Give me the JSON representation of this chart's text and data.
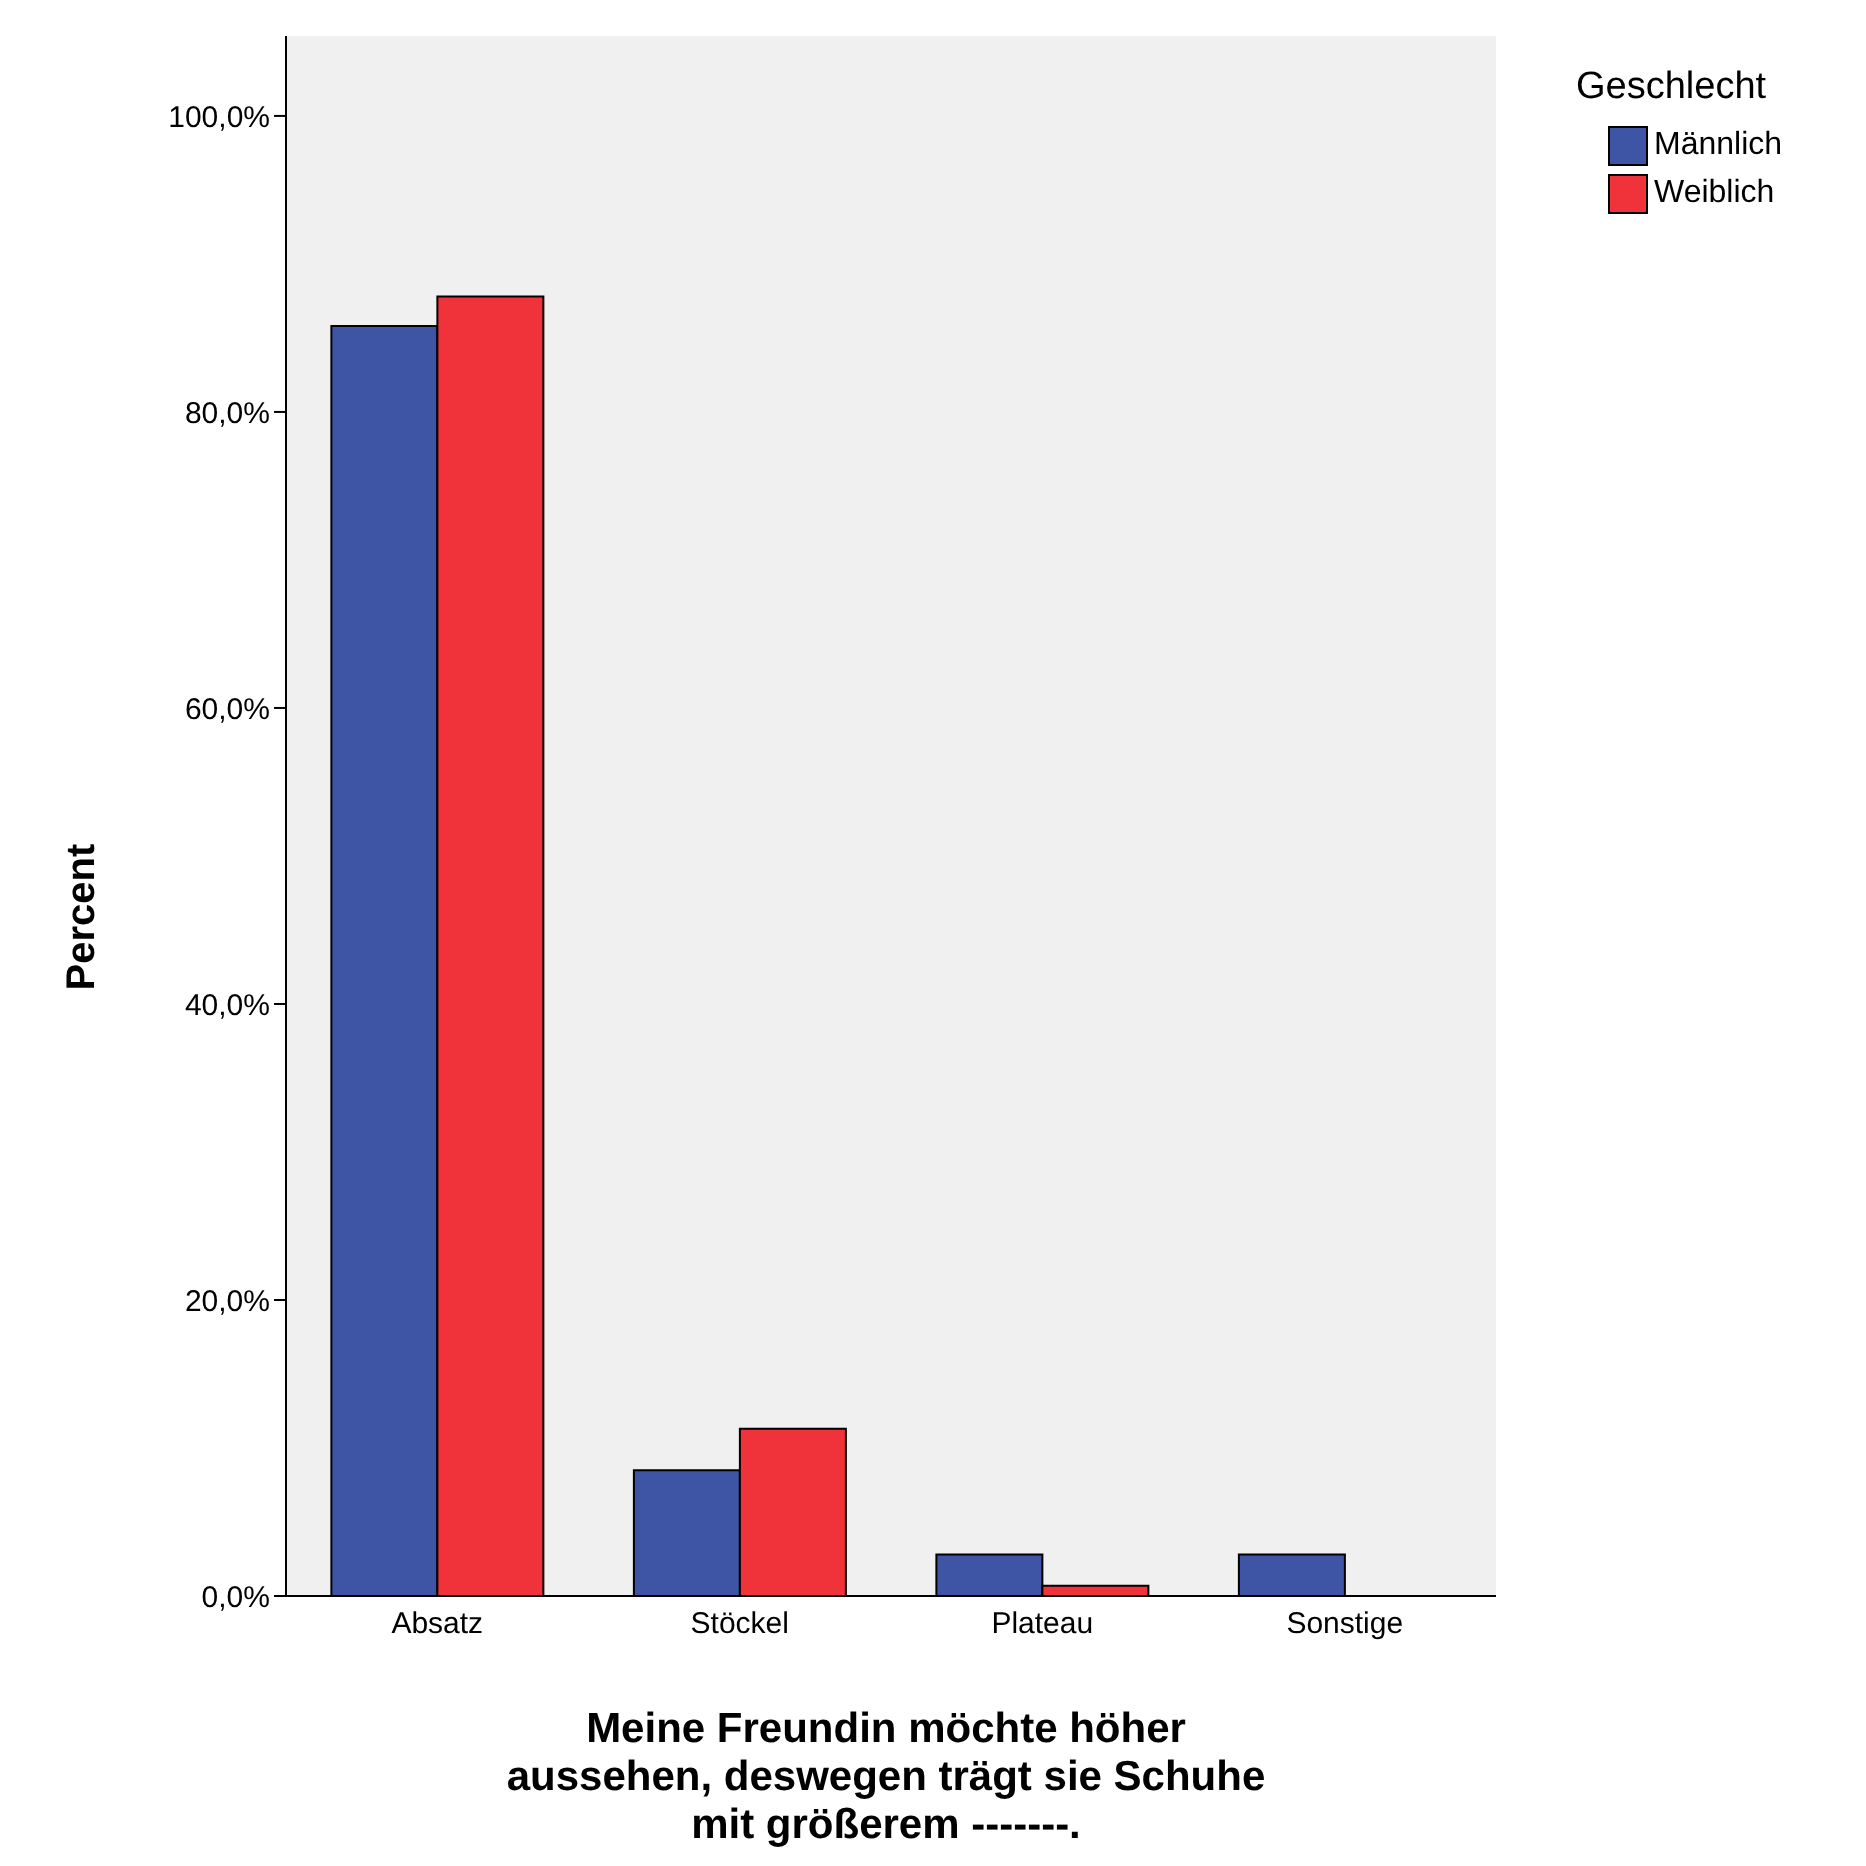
{
  "chart_data": {
    "type": "bar",
    "xlabel": "Meine Freundin möchte höher\naussehen, deswegen trägt sie Schuhe\nmit größerem  -------.",
    "ylabel": "Percent",
    "legend_title": "Geschlecht",
    "categories": [
      "Absatz",
      "Stöckel",
      "Plateau",
      "Sonstige"
    ],
    "series": [
      {
        "name": "Männlich",
        "color": "#3e55a5",
        "values": [
          85.8,
          8.5,
          2.8,
          2.8
        ]
      },
      {
        "name": "Weiblich",
        "color": "#f0323a",
        "values": [
          87.8,
          11.3,
          0.7,
          0
        ]
      }
    ],
    "ylim": [
      0,
      105.4
    ],
    "yticks": [
      {
        "value": 0,
        "label": "0,0%"
      },
      {
        "value": 20,
        "label": "20,0%"
      },
      {
        "value": 40,
        "label": "40,0%"
      },
      {
        "value": 60,
        "label": "60,0%"
      },
      {
        "value": 80,
        "label": "80,0%"
      },
      {
        "value": 100,
        "label": "100,0%"
      }
    ],
    "grid": false,
    "legend": "top right"
  }
}
